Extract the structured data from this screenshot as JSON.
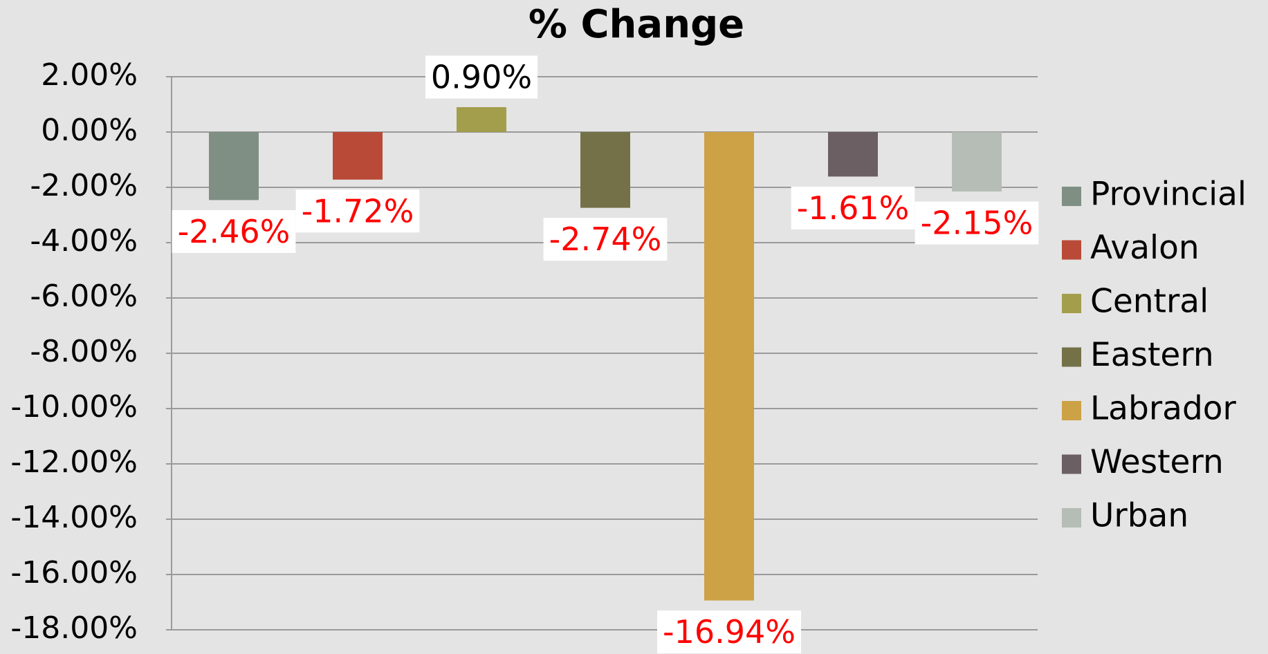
{
  "chart_data": {
    "type": "bar",
    "title": "% Change",
    "series": [
      {
        "name": "Provincial",
        "color": "#7f8f84",
        "values": [
          -2.46
        ],
        "value_labels": [
          "-2.46%"
        ]
      },
      {
        "name": "Avalon",
        "color": "#b94a37",
        "values": [
          -1.72
        ],
        "value_labels": [
          "-1.72%"
        ]
      },
      {
        "name": "Central",
        "color": "#a39e4b",
        "values": [
          0.9
        ],
        "value_labels": [
          "0.90%"
        ]
      },
      {
        "name": "Eastern",
        "color": "#747148",
        "values": [
          -2.74
        ],
        "value_labels": [
          "-2.74%"
        ]
      },
      {
        "name": "Labrador",
        "color": "#cda145",
        "values": [
          -16.94
        ],
        "value_labels": [
          "-16.94%"
        ]
      },
      {
        "name": "Western",
        "color": "#6b5f64",
        "values": [
          -1.61
        ],
        "value_labels": [
          "-1.61%"
        ]
      },
      {
        "name": "Urban",
        "color": "#b5bdb6",
        "values": [
          -2.15
        ],
        "value_labels": [
          "-2.15%"
        ]
      }
    ],
    "ylim": [
      -18,
      2
    ],
    "yticks": [
      {
        "value": 2,
        "label": "2.00%"
      },
      {
        "value": 0,
        "label": "0.00%"
      },
      {
        "value": -2,
        "label": "-2.00%"
      },
      {
        "value": -4,
        "label": "-4.00%"
      },
      {
        "value": -6,
        "label": "-6.00%"
      },
      {
        "value": -8,
        "label": "-8.00%"
      },
      {
        "value": -10,
        "label": "-10.00%"
      },
      {
        "value": -12,
        "label": "-12.00%"
      },
      {
        "value": -14,
        "label": "-14.00%"
      },
      {
        "value": -16,
        "label": "-16.00%"
      },
      {
        "value": -18,
        "label": "-18.00%"
      }
    ],
    "grid": true,
    "legend": "right",
    "label_color": "#000000",
    "negative_label_color": "#ff0000"
  }
}
